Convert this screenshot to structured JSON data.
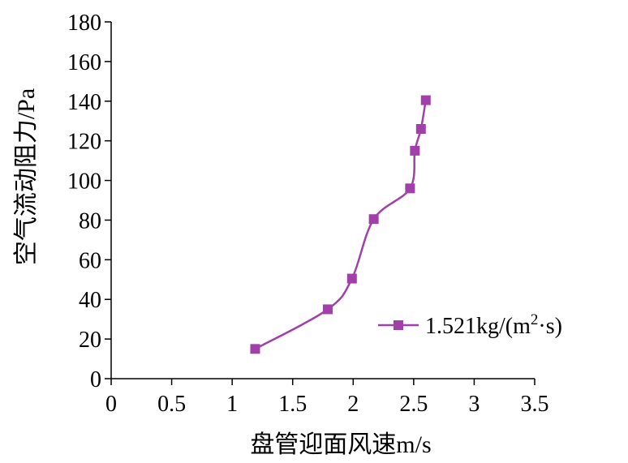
{
  "chart_data": {
    "type": "line",
    "title": "",
    "xlabel": "盘管迎面风速m/s",
    "ylabel": "空气流动阻力/Pa",
    "xlim": [
      0,
      3.5
    ],
    "ylim": [
      0,
      180
    ],
    "xticks": [
      "0",
      "0.5",
      "1",
      "1.5",
      "2",
      "2.5",
      "3",
      "3.5"
    ],
    "yticks": [
      "0",
      "20",
      "40",
      "60",
      "80",
      "100",
      "120",
      "140",
      "160",
      "180"
    ],
    "grid": false,
    "legend_position": "right",
    "series": [
      {
        "name": "1.521kg/(m²·s)",
        "color": "#a040a8",
        "marker": "square",
        "x": [
          1.19,
          1.79,
          1.99,
          2.17,
          2.47,
          2.51,
          2.56,
          2.6
        ],
        "y": [
          15,
          35,
          50.5,
          80.5,
          96,
          115,
          126,
          140.5
        ]
      }
    ]
  }
}
